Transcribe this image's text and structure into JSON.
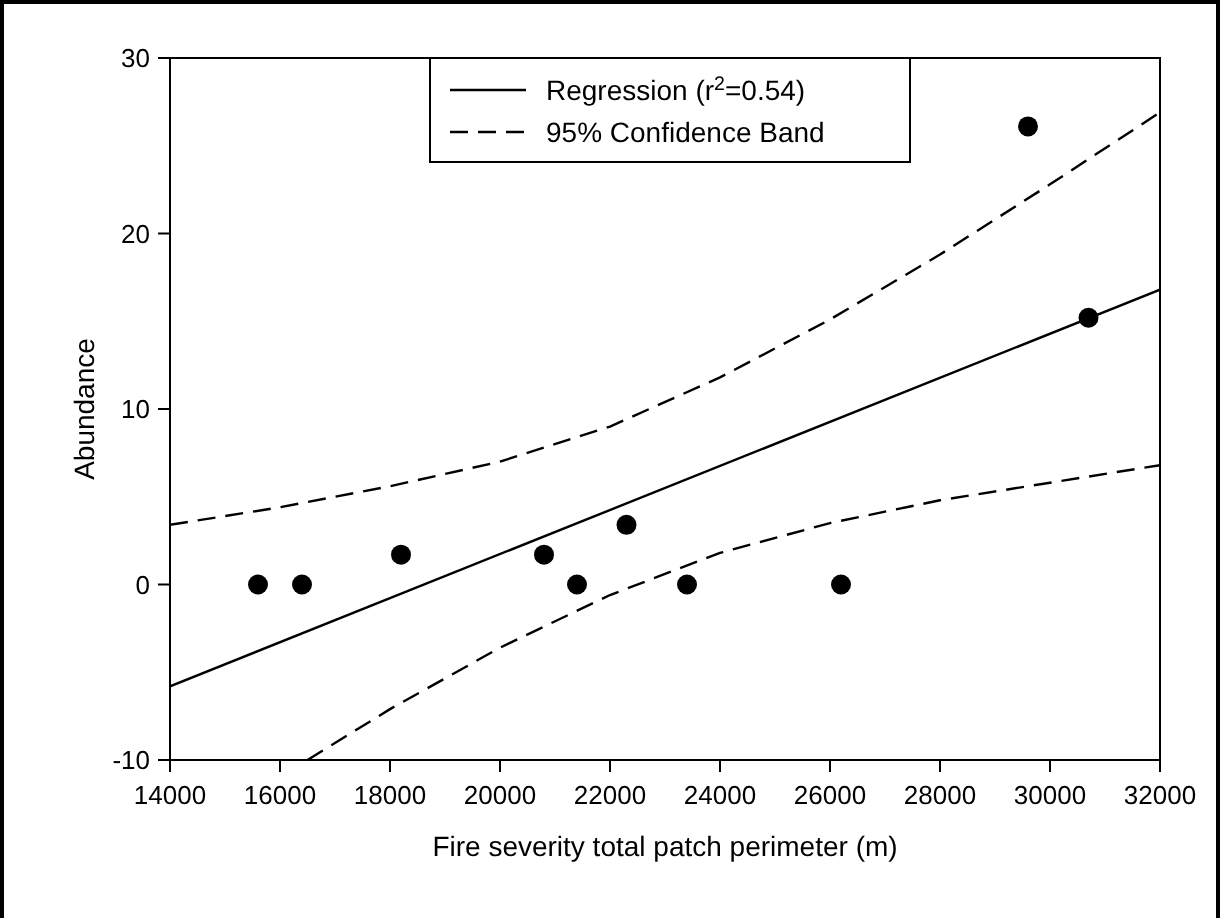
{
  "chart_data": {
    "type": "scatter",
    "xlabel": "Fire severity total patch perimeter (m)",
    "ylabel": "Abundance",
    "xlim": [
      14000,
      32000
    ],
    "xticks": [
      14000,
      16000,
      18000,
      20000,
      22000,
      24000,
      26000,
      28000,
      30000,
      32000
    ],
    "ylim": [
      -10,
      30
    ],
    "yticks": [
      -10,
      0,
      10,
      20,
      30
    ],
    "grid": false,
    "legend": "top",
    "series": [
      {
        "color": "#000000",
        "marker": "circle",
        "x": [
          15600,
          16400,
          18200,
          20800,
          21400,
          22300,
          23400,
          26200,
          29600,
          30700
        ],
        "values": [
          0,
          0,
          1.7,
          1.7,
          0,
          3.4,
          0,
          0,
          26.1,
          15.2
        ]
      },
      {
        "type": "line",
        "name": "Regression (r$^{2}$=0.54)",
        "color": "#000000",
        "line_style": "solid",
        "marker": "none",
        "x": [
          14000,
          32000
        ],
        "values": [
          -5.8,
          16.8
        ]
      },
      {
        "type": "line",
        "name": "95% Confidence Band",
        "color": "#000000",
        "line_style": "dashed",
        "marker": "none",
        "x": [
          14000,
          16000,
          18000,
          20000,
          22000,
          24000,
          26000,
          28000,
          30000,
          32000
        ],
        "values": [
          3.4,
          4.4,
          5.6,
          7.0,
          9.0,
          11.8,
          15.1,
          18.8,
          22.8,
          26.9
        ]
      },
      {
        "type": "line",
        "color": "#000000",
        "line_style": "dashed",
        "marker": "none",
        "x": [
          16500,
          18000,
          20000,
          22000,
          24000,
          26000,
          28000,
          30000,
          32000
        ],
        "values": [
          -10,
          -7.1,
          -3.6,
          -0.6,
          1.8,
          3.5,
          4.8,
          5.8,
          6.8
        ]
      }
    ]
  }
}
